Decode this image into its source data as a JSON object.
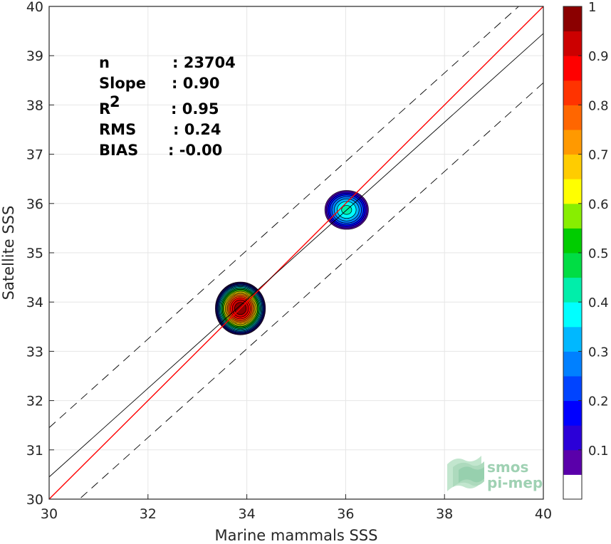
{
  "chart_data": {
    "type": "heatmap",
    "subtype": "scatter-density-contour",
    "xlabel": "Marine mammals SSS",
    "ylabel": "Satellite SSS",
    "xlim": [
      30,
      40
    ],
    "ylim": [
      30,
      40
    ],
    "xticks": [
      30,
      32,
      34,
      36,
      38,
      40
    ],
    "yticks": [
      30,
      31,
      32,
      33,
      34,
      35,
      36,
      37,
      38,
      39,
      40
    ],
    "grid": true,
    "stats": [
      {
        "label": "n",
        "value": ": 23704"
      },
      {
        "label": "Slope",
        "value": ": 0.90"
      },
      {
        "label": "R",
        "sup": "2",
        "value": ": 0.95"
      },
      {
        "label": "RMS",
        "value": ": 0.24"
      },
      {
        "label": "BIAS",
        "value": ": -0.00"
      }
    ],
    "reference_lines": [
      {
        "kind": "one-to-one",
        "color": "#ff0000",
        "style": "solid",
        "slope": 1.0,
        "intercept": 0.0
      },
      {
        "kind": "regression",
        "color": "#000000",
        "style": "solid",
        "slope": 0.9,
        "intercept": 3.45
      },
      {
        "kind": "regression+offset",
        "color": "#000000",
        "style": "dashed",
        "slope": 0.9,
        "intercept": 4.45
      },
      {
        "kind": "regression-offset",
        "color": "#000000",
        "style": "dashed",
        "slope": 0.9,
        "intercept": 2.45
      }
    ],
    "clusters": [
      {
        "x": 33.87,
        "y": 33.87,
        "rx": 0.52,
        "ry": 0.55,
        "peak": 1.0
      },
      {
        "x": 36.02,
        "y": 35.87,
        "rx": 0.47,
        "ry": 0.42,
        "peak": 0.42
      }
    ],
    "colorbar": {
      "ticks": [
        0.1,
        0.2,
        0.3,
        0.4,
        0.5,
        0.6,
        0.7,
        0.8,
        0.9,
        1
      ],
      "tick_labels": [
        "0.1",
        "0.2",
        "0.3",
        "0.4",
        "0.5",
        "0.6",
        "0.7",
        "0.8",
        "0.9",
        "1"
      ],
      "colors": [
        "#ffffff",
        "#5a00aa",
        "#2b00d8",
        "#0000ff",
        "#0044ff",
        "#0080ff",
        "#00b8ff",
        "#00ffff",
        "#00eeaa",
        "#00dd44",
        "#00cc00",
        "#88ee00",
        "#ffff00",
        "#ffcc00",
        "#ff9900",
        "#ff6600",
        "#ff3300",
        "#ff0000",
        "#cc0000",
        "#8b0000"
      ]
    }
  },
  "watermark": {
    "line1": "smos",
    "line2": "pi-mep"
  }
}
